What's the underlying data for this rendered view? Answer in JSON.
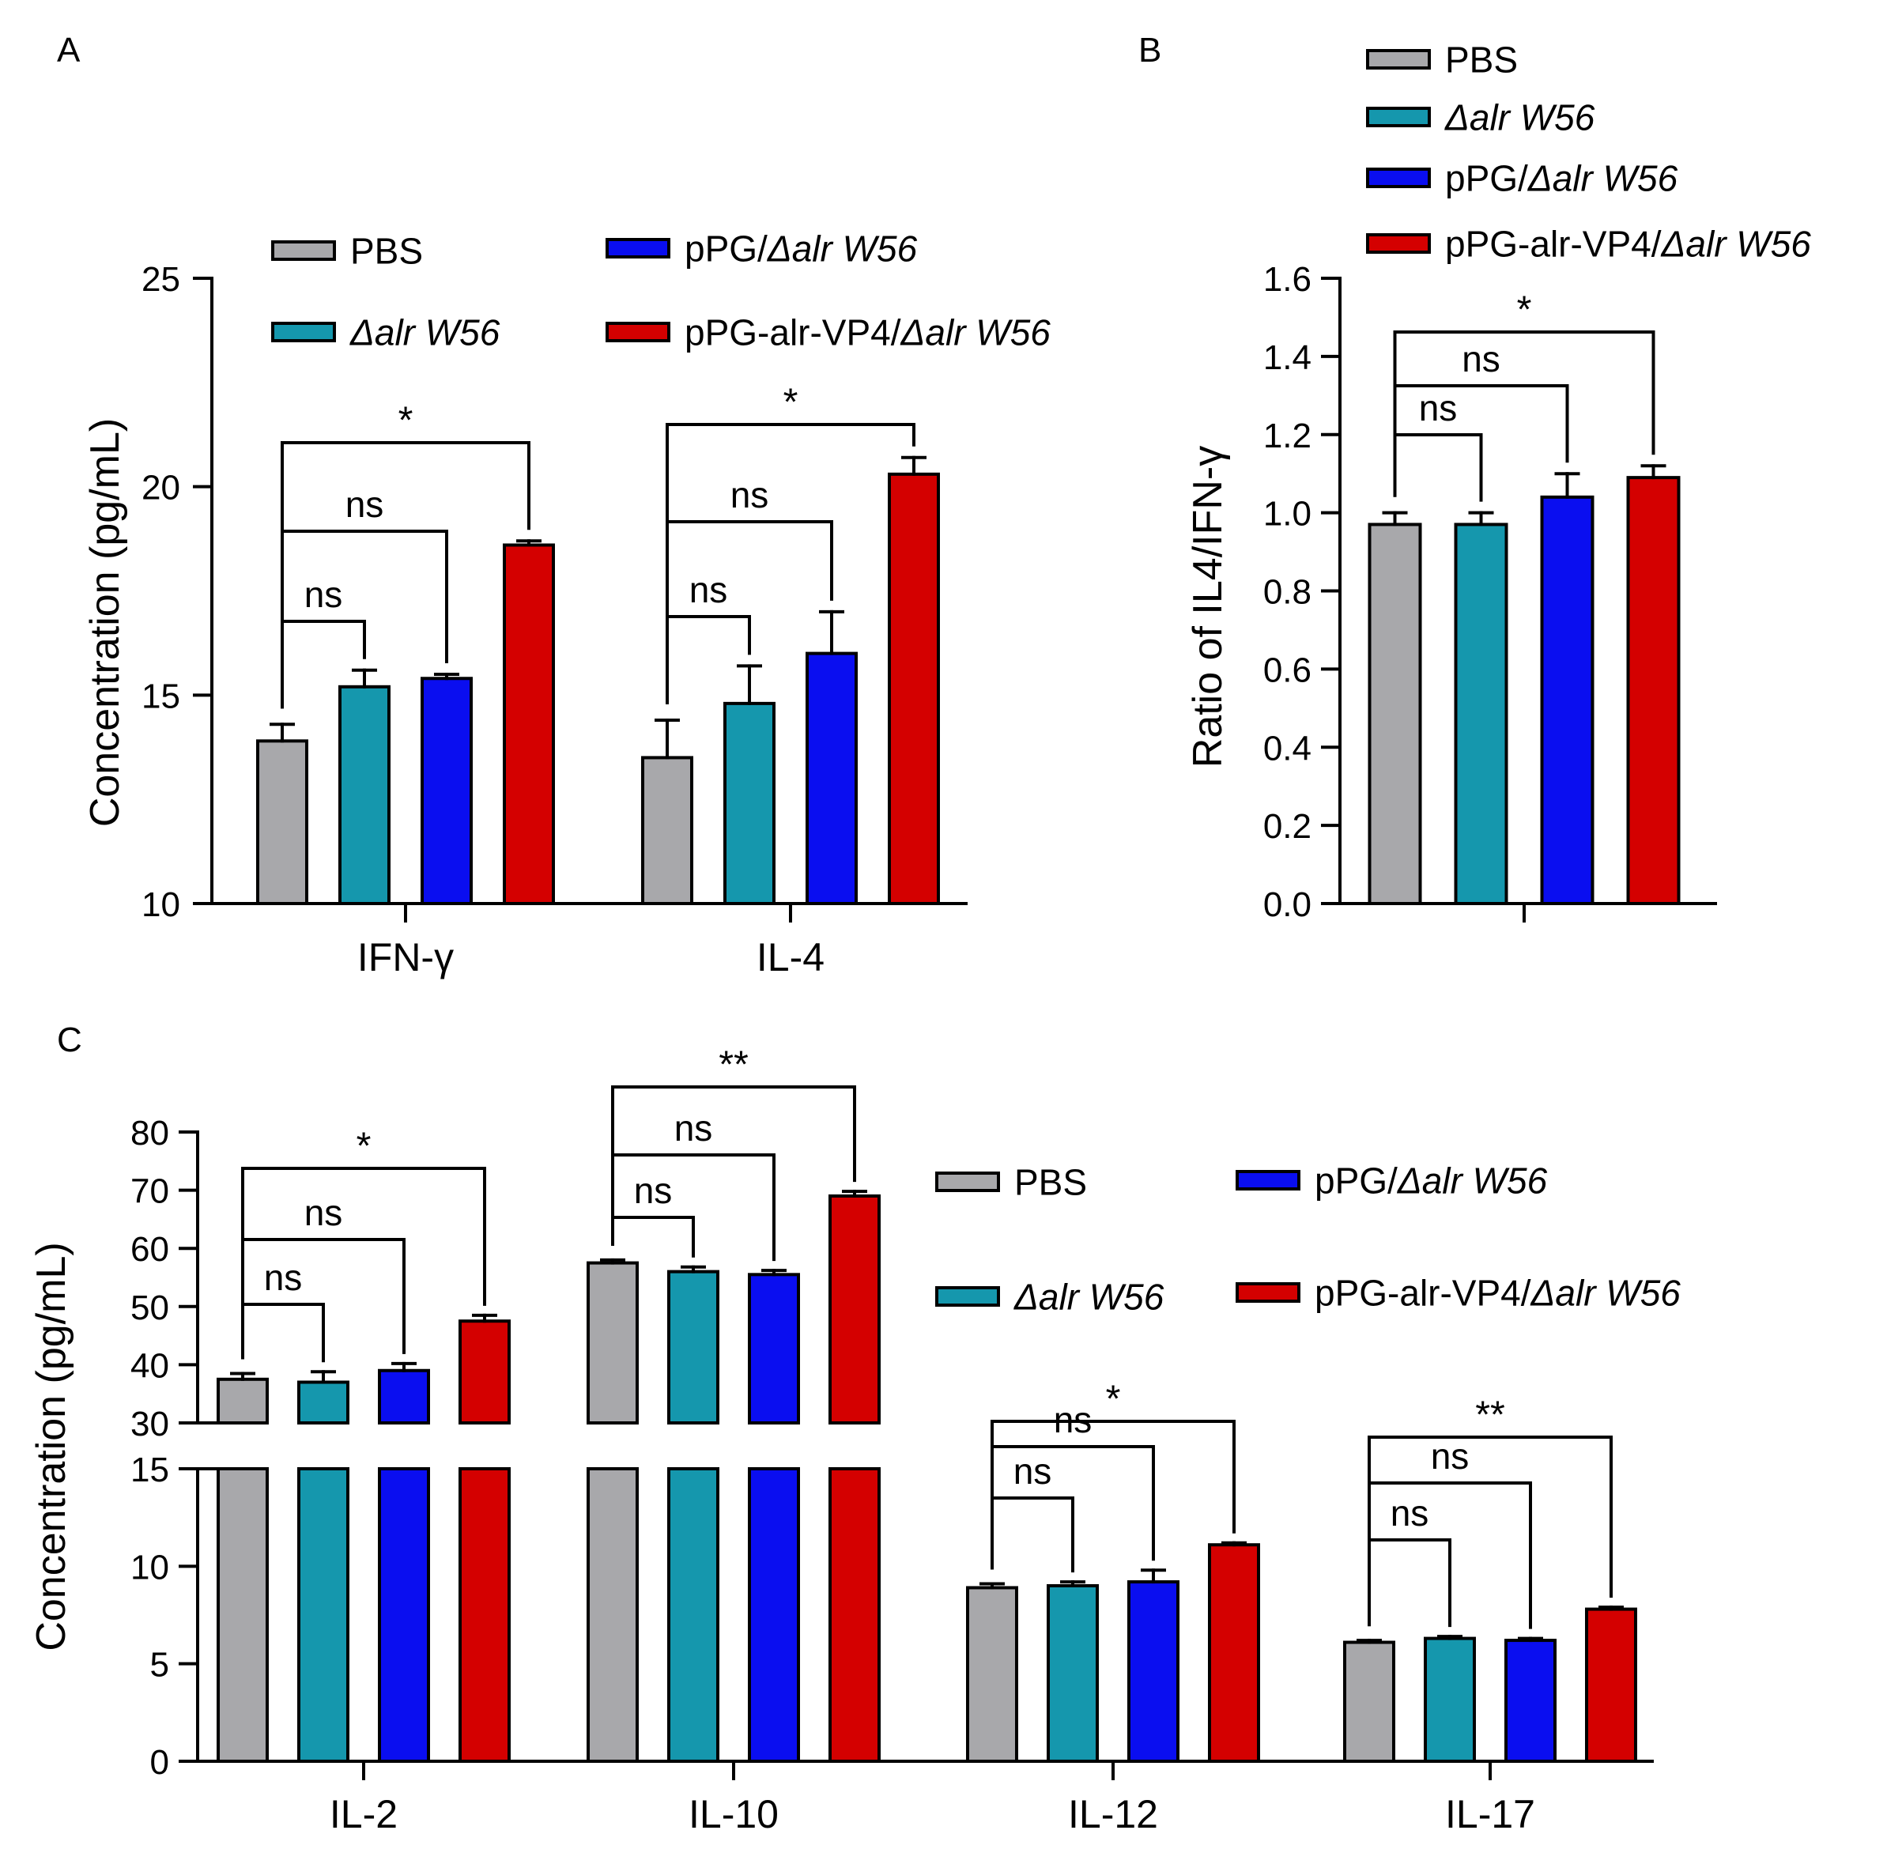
{
  "colors": {
    "PBS": "#a8a8ab",
    "dalr": "#1597ad",
    "pPG": "#0a0ef0",
    "VP4": "#d40000"
  },
  "chart_data": [
    {
      "panel": "A",
      "type": "bar",
      "ylabel": "Concentration (pg/mL)",
      "ylim": [
        10,
        25
      ],
      "yticks": [
        "10",
        "15",
        "20",
        "25"
      ],
      "categories": [
        "IFN-γ",
        "IL-4"
      ],
      "legend_placement": "top",
      "series": [
        {
          "name": "PBS",
          "values": [
            13.9,
            13.5
          ],
          "err": [
            0.4,
            0.9
          ]
        },
        {
          "name": "Δalr W56",
          "values": [
            15.2,
            14.8
          ],
          "err": [
            0.4,
            0.9
          ]
        },
        {
          "name": "pPG/Δalr W56",
          "values": [
            15.4,
            16.0
          ],
          "err": [
            0.1,
            1.0
          ]
        },
        {
          "name": "pPG-alr-VP4/Δalr W56",
          "values": [
            18.6,
            20.3
          ],
          "err": [
            0.1,
            0.4
          ]
        }
      ],
      "significance": [
        [
          {
            "label": "ns"
          },
          {
            "label": "ns"
          },
          {
            "label": "*"
          }
        ],
        [
          {
            "label": "ns"
          },
          {
            "label": "ns"
          },
          {
            "label": "*"
          }
        ]
      ]
    },
    {
      "panel": "B",
      "type": "bar",
      "ylabel": "Ratio of IL4/IFN-γ",
      "ylim": [
        0,
        1.6
      ],
      "yticks": [
        "0.0",
        "0.2",
        "0.4",
        "0.6",
        "0.8",
        "1.0",
        "1.2",
        "1.4",
        "1.6"
      ],
      "categories": [
        ""
      ],
      "legend_placement": "top-right",
      "series": [
        {
          "name": "PBS",
          "values": [
            0.97
          ],
          "err": [
            0.03
          ]
        },
        {
          "name": "Δalr W56",
          "values": [
            0.97
          ],
          "err": [
            0.03
          ]
        },
        {
          "name": "pPG/Δalr W56",
          "values": [
            1.04
          ],
          "err": [
            0.06
          ]
        },
        {
          "name": "pPG-alr-VP4/Δalr W56",
          "values": [
            1.09
          ],
          "err": [
            0.03
          ]
        }
      ],
      "significance": [
        [
          {
            "label": "ns"
          },
          {
            "label": "ns"
          },
          {
            "label": "*"
          }
        ]
      ]
    },
    {
      "panel": "C",
      "type": "bar",
      "ylabel": "Concentration (pg/mL)",
      "y_axis_break": {
        "lower": [
          0,
          15
        ],
        "upper": [
          30,
          80
        ]
      },
      "yticks_lower": [
        "0",
        "5",
        "10",
        "15"
      ],
      "yticks_upper": [
        "30",
        "40",
        "50",
        "60",
        "70",
        "80"
      ],
      "categories": [
        "IL-2",
        "IL-10",
        "IL-12",
        "IL-17"
      ],
      "legend_placement": "right",
      "series": [
        {
          "name": "PBS",
          "values": [
            37.5,
            57.5,
            8.9,
            6.1
          ],
          "err": [
            1.0,
            0.5,
            0.2,
            0.1
          ]
        },
        {
          "name": "Δalr W56",
          "values": [
            37.0,
            56.0,
            9.0,
            6.3
          ],
          "err": [
            1.8,
            0.8,
            0.2,
            0.1
          ]
        },
        {
          "name": "pPG/Δalr W56",
          "values": [
            39.0,
            55.5,
            9.2,
            6.2
          ],
          "err": [
            1.2,
            0.7,
            0.6,
            0.1
          ]
        },
        {
          "name": "pPG-alr-VP4/Δalr W56",
          "values": [
            47.5,
            69.0,
            11.1,
            7.8
          ],
          "err": [
            1.0,
            0.8,
            0.1,
            0.1
          ]
        }
      ],
      "significance": [
        [
          {
            "label": "ns"
          },
          {
            "label": "ns"
          },
          {
            "label": "*"
          }
        ],
        [
          {
            "label": "ns"
          },
          {
            "label": "ns"
          },
          {
            "label": "**"
          }
        ],
        [
          {
            "label": "ns"
          },
          {
            "label": "ns"
          },
          {
            "label": "*"
          }
        ],
        [
          {
            "label": "ns"
          },
          {
            "label": "ns"
          },
          {
            "label": "**"
          }
        ]
      ]
    }
  ],
  "legend": {
    "items": [
      {
        "key": "PBS",
        "plain": "PBS",
        "italic": ""
      },
      {
        "key": "dalr",
        "plain": "",
        "italic": "Δalr W56"
      },
      {
        "key": "pPG",
        "plain": "pPG/",
        "italic": "Δalr W56"
      },
      {
        "key": "VP4",
        "plain": "pPG-alr-VP4/",
        "italic": "Δalr W56"
      }
    ]
  },
  "panel_letters": [
    "A",
    "B",
    "C"
  ]
}
